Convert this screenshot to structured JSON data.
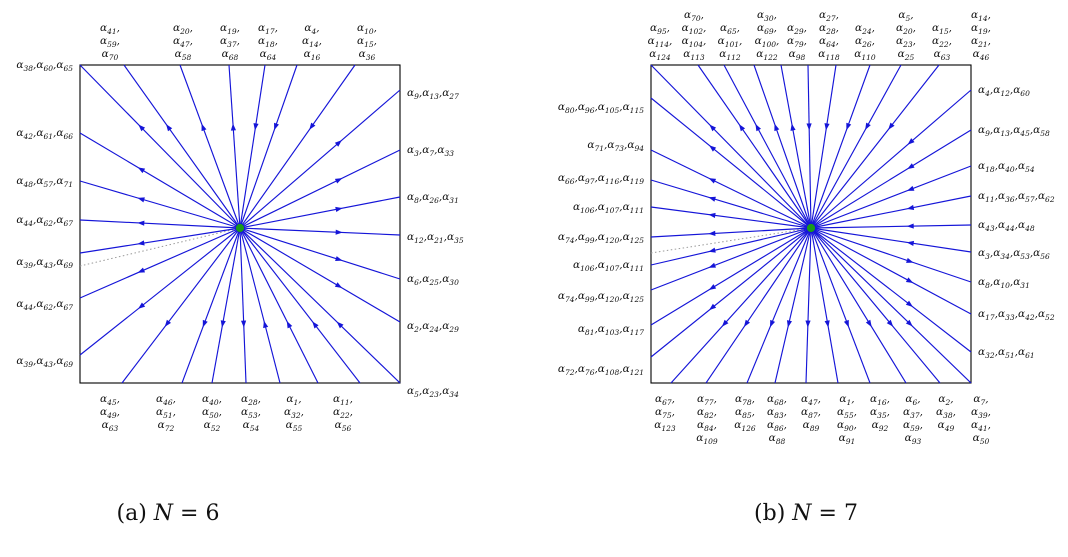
{
  "panels": [
    {
      "id": "a",
      "caption_prefix": "(a) ",
      "caption_var": "N",
      "caption_rest": " = 6",
      "left_labels": [
        "α38,α60,α65",
        "α42,α61,α66",
        "α48,α57,α71",
        "α44,α62,α67",
        "α39,α43,α69",
        "α44,α62,α67",
        "α39,α43,α69"
      ],
      "right_labels": [
        "α9,α13,α27",
        "α3,α7,α33",
        "α8,α26,α31",
        "α12,α21,α35",
        "α6,α25,α30",
        "α2,α24,α29",
        "α5,α23,α34"
      ],
      "top_labels": [
        [
          "α41,",
          "α59,",
          "α70"
        ],
        [
          "α20,",
          "α47,",
          "α58"
        ],
        [
          "α19,",
          "α37,",
          "α68"
        ],
        [
          "α17,",
          "α18,",
          "α64"
        ],
        [
          "α4,",
          "α14,",
          "α16"
        ],
        [
          "α10,",
          "α15,",
          "α36"
        ]
      ],
      "bottom_labels": [
        [
          "α45,",
          "α49,",
          "α63"
        ],
        [
          "α46,",
          "α51,",
          "α72"
        ],
        [
          "α40,",
          "α50,",
          "α52"
        ],
        [
          "α28,",
          "α53,",
          "α54"
        ],
        [
          "α1,",
          "α32,",
          "α55"
        ],
        [
          "α11,",
          "α22,",
          "α56"
        ]
      ]
    },
    {
      "id": "b",
      "caption_prefix": "(b) ",
      "caption_var": "N",
      "caption_rest": " = 7",
      "left_labels": [
        "α80,α96,α105,α115",
        "α71,α73,α94",
        "α66,α97,α116,α119",
        "α106,α107,α111",
        "α74,α99,α120,α125",
        "α106,α107,α111",
        "α74,α99,α120,α125",
        "α81,α103,α117",
        "α72,α76,α108,α121"
      ],
      "right_labels": [
        "α4,α12,α60",
        "α9,α13,α45,α58",
        "α18,α40,α54",
        "α11,α36,α57,α62",
        "α43,α44,α48",
        "α3,α34,α53,α56",
        "α8,α10,α31",
        "α17,α33,α42,α52",
        "α32,α51,α61"
      ],
      "top_labels": [
        [
          "α95,",
          "α114,",
          "α124"
        ],
        [
          "α70,",
          "α102,",
          "α104,",
          "α113"
        ],
        [
          "α65,",
          "α101,",
          "α112"
        ],
        [
          "α30,",
          "α69,",
          "α100,",
          "α122"
        ],
        [
          "α29,",
          "α79,",
          "α98"
        ],
        [
          "α27,",
          "α28,",
          "α64,",
          "α118"
        ],
        [
          "α24,",
          "α26,",
          "α110"
        ],
        [
          "α5,",
          "α20,",
          "α23,",
          "α25"
        ],
        [
          "α15,",
          "α22,",
          "α63"
        ],
        [
          "α14,",
          "α19,",
          "α21,",
          "α46"
        ]
      ],
      "bottom_labels": [
        [
          "α67,",
          "α75,",
          "α123"
        ],
        [
          "α77,",
          "α82,",
          "α84,",
          "α109"
        ],
        [
          "α78,",
          "α85,",
          "α126"
        ],
        [
          "α68,",
          "α83,",
          "α86,",
          "α88"
        ],
        [
          "α47,",
          "α87,",
          "α89"
        ],
        [
          "α1,",
          "α55,",
          "α90,",
          "α91"
        ],
        [
          "α16,",
          "α35,",
          "α92"
        ],
        [
          "α6,",
          "α37,",
          "α59,",
          "α93"
        ],
        [
          "α2,",
          "α38,",
          "α49"
        ],
        [
          "α7,",
          "α39,",
          "α41,",
          "α50"
        ]
      ]
    }
  ],
  "colors": {
    "ray": "#1515d8",
    "center": "#1a9a1a",
    "dotted": "#9a9a9a",
    "frame": "#000000"
  }
}
